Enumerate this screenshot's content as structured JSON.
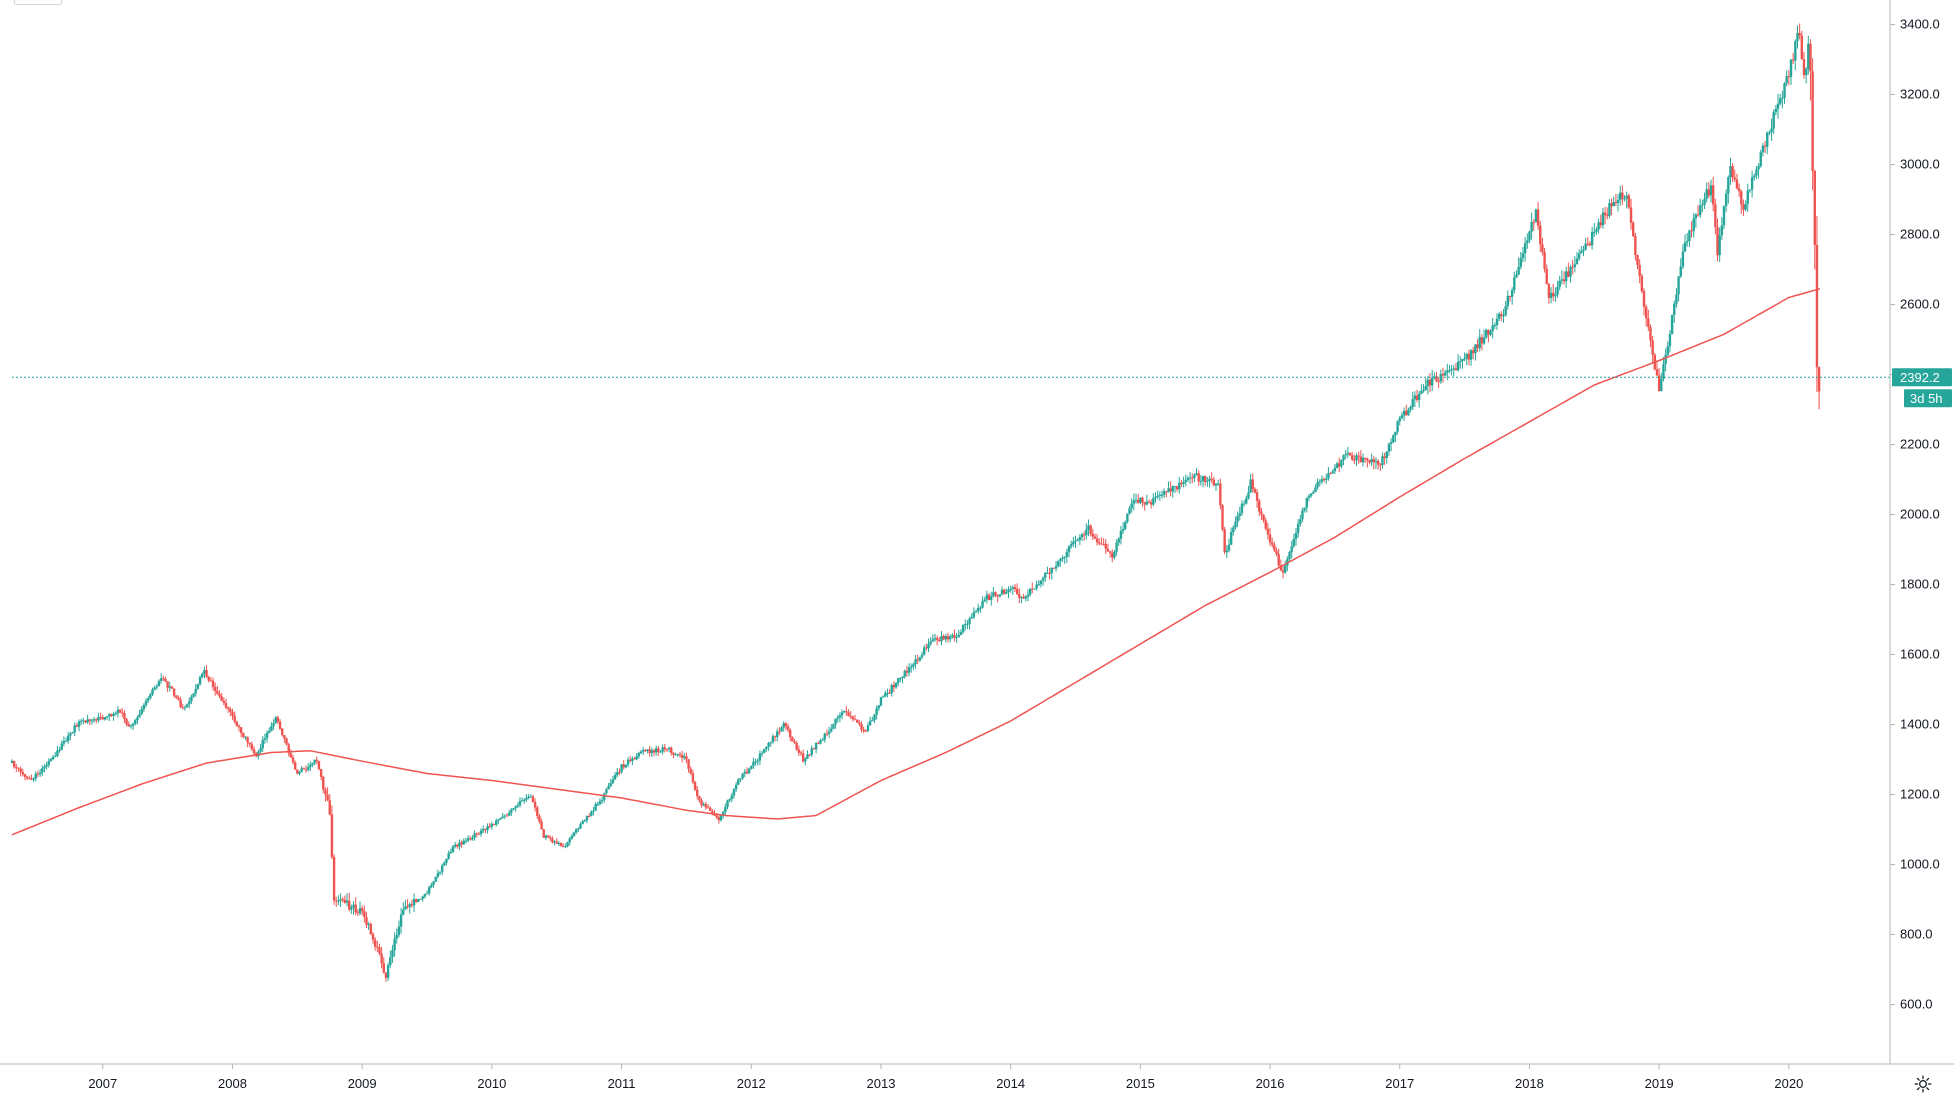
{
  "chart_data": {
    "type": "candlestick",
    "ylim": [
      430,
      3470
    ],
    "xlim": [
      2006.3,
      2020.78
    ],
    "y_ticks": [
      600,
      800,
      1000,
      1200,
      1400,
      1600,
      1800,
      2000,
      2200,
      2400,
      2600,
      2800,
      3000,
      3200,
      3400
    ],
    "y_tick_labels": [
      "600.0",
      "800.0",
      "1000.0",
      "1200.0",
      "1400.0",
      "1600.0",
      "1800.0",
      "2000.0",
      "2200.0",
      "2400.0",
      "2600.0",
      "2800.0",
      "3000.0",
      "3200.0",
      "3400.0"
    ],
    "x_ticks": [
      2007,
      2008,
      2009,
      2010,
      2011,
      2012,
      2013,
      2014,
      2015,
      2016,
      2017,
      2018,
      2019,
      2020
    ],
    "x_tick_labels": [
      "2007",
      "2008",
      "2009",
      "2010",
      "2011",
      "2012",
      "2013",
      "2014",
      "2015",
      "2016",
      "2017",
      "2018",
      "2019",
      "2020"
    ],
    "price_path": [
      [
        2006.3,
        1290
      ],
      [
        2006.45,
        1240
      ],
      [
        2006.6,
        1300
      ],
      [
        2006.8,
        1400
      ],
      [
        2007.0,
        1420
      ],
      [
        2007.15,
        1440
      ],
      [
        2007.2,
        1390
      ],
      [
        2007.45,
        1530
      ],
      [
        2007.55,
        1490
      ],
      [
        2007.62,
        1440
      ],
      [
        2007.78,
        1550
      ],
      [
        2007.9,
        1480
      ],
      [
        2008.05,
        1390
      ],
      [
        2008.18,
        1310
      ],
      [
        2008.33,
        1420
      ],
      [
        2008.5,
        1260
      ],
      [
        2008.65,
        1300
      ],
      [
        2008.75,
        1140
      ],
      [
        2008.78,
        900
      ],
      [
        2008.92,
        880
      ],
      [
        2009.0,
        860
      ],
      [
        2009.12,
        760
      ],
      [
        2009.18,
        680
      ],
      [
        2009.3,
        860
      ],
      [
        2009.5,
        920
      ],
      [
        2009.7,
        1050
      ],
      [
        2010.0,
        1110
      ],
      [
        2010.3,
        1200
      ],
      [
        2010.4,
        1080
      ],
      [
        2010.55,
        1050
      ],
      [
        2010.7,
        1120
      ],
      [
        2010.85,
        1190
      ],
      [
        2011.0,
        1280
      ],
      [
        2011.15,
        1320
      ],
      [
        2011.35,
        1330
      ],
      [
        2011.5,
        1300
      ],
      [
        2011.6,
        1180
      ],
      [
        2011.75,
        1130
      ],
      [
        2011.9,
        1240
      ],
      [
        2012.0,
        1280
      ],
      [
        2012.25,
        1400
      ],
      [
        2012.4,
        1300
      ],
      [
        2012.55,
        1360
      ],
      [
        2012.7,
        1440
      ],
      [
        2012.88,
        1380
      ],
      [
        2013.0,
        1470
      ],
      [
        2013.4,
        1640
      ],
      [
        2013.6,
        1660
      ],
      [
        2013.8,
        1760
      ],
      [
        2014.0,
        1790
      ],
      [
        2014.1,
        1760
      ],
      [
        2014.4,
        1880
      ],
      [
        2014.6,
        1960
      ],
      [
        2014.78,
        1880
      ],
      [
        2014.95,
        2050
      ],
      [
        2015.05,
        2030
      ],
      [
        2015.4,
        2110
      ],
      [
        2015.6,
        2090
      ],
      [
        2015.65,
        1890
      ],
      [
        2015.85,
        2090
      ],
      [
        2016.0,
        1930
      ],
      [
        2016.1,
        1830
      ],
      [
        2016.3,
        2060
      ],
      [
        2016.6,
        2170
      ],
      [
        2016.85,
        2140
      ],
      [
        2017.0,
        2270
      ],
      [
        2017.2,
        2370
      ],
      [
        2017.5,
        2440
      ],
      [
        2017.8,
        2580
      ],
      [
        2018.05,
        2860
      ],
      [
        2018.15,
        2620
      ],
      [
        2018.35,
        2710
      ],
      [
        2018.65,
        2900
      ],
      [
        2018.75,
        2920
      ],
      [
        2018.82,
        2740
      ],
      [
        2019.0,
        2350
      ],
      [
        2019.2,
        2780
      ],
      [
        2019.4,
        2940
      ],
      [
        2019.45,
        2750
      ],
      [
        2019.55,
        3000
      ],
      [
        2019.65,
        2870
      ],
      [
        2019.75,
        2990
      ],
      [
        2020.0,
        3260
      ],
      [
        2020.08,
        3380
      ],
      [
        2020.12,
        3250
      ],
      [
        2020.16,
        3360
      ],
      [
        2020.18,
        2950
      ],
      [
        2020.2,
        2760
      ],
      [
        2020.22,
        2400
      ],
      [
        2020.24,
        2300
      ]
    ],
    "moving_average": [
      [
        2006.3,
        1085
      ],
      [
        2006.8,
        1160
      ],
      [
        2007.3,
        1230
      ],
      [
        2007.8,
        1290
      ],
      [
        2008.3,
        1320
      ],
      [
        2008.6,
        1325
      ],
      [
        2009.0,
        1295
      ],
      [
        2009.5,
        1260
      ],
      [
        2010.0,
        1240
      ],
      [
        2010.5,
        1215
      ],
      [
        2011.0,
        1190
      ],
      [
        2011.5,
        1155
      ],
      [
        2011.8,
        1140
      ],
      [
        2012.2,
        1130
      ],
      [
        2012.5,
        1140
      ],
      [
        2013.0,
        1240
      ],
      [
        2013.5,
        1320
      ],
      [
        2014.0,
        1410
      ],
      [
        2014.5,
        1520
      ],
      [
        2015.0,
        1630
      ],
      [
        2015.5,
        1740
      ],
      [
        2016.0,
        1835
      ],
      [
        2016.5,
        1935
      ],
      [
        2017.0,
        2050
      ],
      [
        2017.5,
        2160
      ],
      [
        2018.0,
        2265
      ],
      [
        2018.5,
        2370
      ],
      [
        2019.0,
        2440
      ],
      [
        2019.5,
        2515
      ],
      [
        2020.0,
        2620
      ],
      [
        2020.24,
        2645
      ]
    ],
    "last_price": 2392.2,
    "last_price_label": "2392.2",
    "countdown_label": "3d 5h",
    "colors": {
      "up": "#26a69a",
      "down": "#ef5350",
      "ma": "#ef5350",
      "price_line": "#26a69a",
      "badge": "#26a69a",
      "axis": "#b2b5be"
    },
    "grid": false,
    "legend": "none"
  },
  "toolbar": {
    "settings_icon": "gear-icon"
  }
}
